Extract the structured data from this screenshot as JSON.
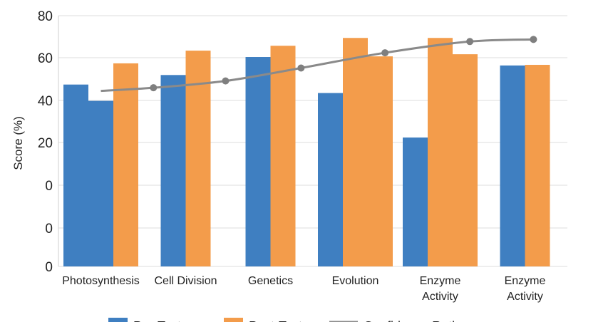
{
  "chart_data": {
    "type": "bar",
    "title": "",
    "xlabel": "",
    "ylabel": "Score (%)",
    "ytick_labels": [
      "0",
      "0",
      "0",
      "20",
      "40",
      "60",
      "80"
    ],
    "categories": [
      [
        "Photosynthesis"
      ],
      [
        "Cell Division"
      ],
      [
        "Genetics"
      ],
      [
        "Evolution"
      ],
      [
        "Enzyme",
        "Activity"
      ],
      [
        "Enzyme",
        "Activity"
      ]
    ],
    "series": [
      {
        "name": "Pre-Test",
        "color": "#3f7fc1",
        "kind": "bar",
        "bars": [
          [
            47.5,
            39.8
          ],
          [
            52
          ],
          [
            60.5
          ],
          [
            43.5
          ],
          [
            22.5
          ],
          [
            56.5
          ]
        ]
      },
      {
        "name": "Post-Test",
        "color": "#f39c4b",
        "kind": "bar",
        "bars": [
          [
            57.5
          ],
          [
            63.5
          ],
          [
            65.8
          ],
          [
            69.5,
            60.8
          ],
          [
            69.5,
            61.8
          ],
          [
            56.8
          ]
        ]
      },
      {
        "name": "Confidence Rating",
        "color": "#8a8a8a",
        "kind": "line",
        "points": [
          {
            "x": 0.0,
            "y": 44.5
          },
          {
            "x": 0.62,
            "y": 46
          },
          {
            "x": 1.47,
            "y": 49.2
          },
          {
            "x": 2.36,
            "y": 55.3
          },
          {
            "x": 3.35,
            "y": 62.5
          },
          {
            "x": 4.35,
            "y": 67.8
          },
          {
            "x": 5.1,
            "y": 68.8
          }
        ]
      }
    ],
    "legend": [
      "Pre-Test",
      "Post-Test",
      "Confidence Rating"
    ],
    "legend_position": "bottom",
    "grid": true
  }
}
